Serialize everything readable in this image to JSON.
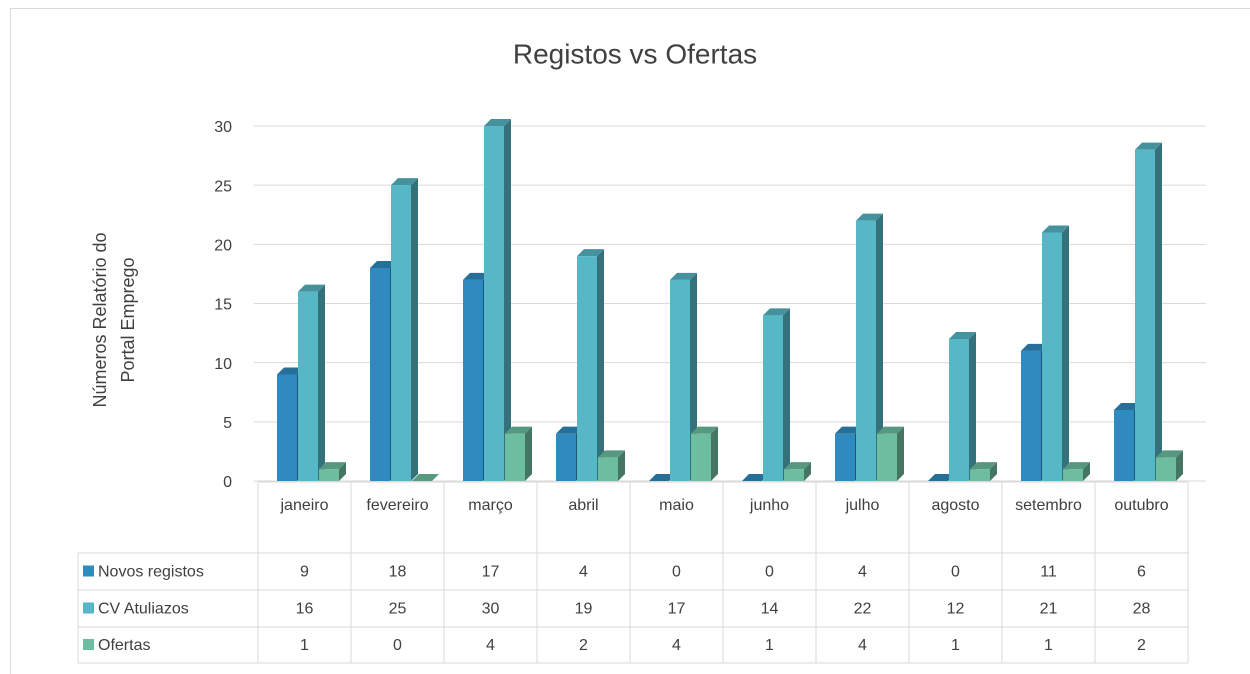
{
  "chart_data": {
    "type": "bar3d",
    "title": "Registos vs Ofertas",
    "y_label": "Números Relatório do Portal Emprego",
    "categories": [
      "janeiro",
      "fevereiro",
      "março",
      "abril",
      "maio",
      "junho",
      "julho",
      "agosto",
      "setembro",
      "outubro"
    ],
    "series": [
      {
        "name": "Novos registos",
        "color": "#2f8bbf",
        "values": [
          9,
          18,
          17,
          4,
          0,
          0,
          4,
          0,
          11,
          6
        ]
      },
      {
        "name": "CV Atuliazos",
        "color": "#56b7c6",
        "values": [
          16,
          25,
          30,
          19,
          17,
          14,
          22,
          12,
          21,
          28
        ]
      },
      {
        "name": "Ofertas",
        "color": "#6dbea0",
        "values": [
          1,
          0,
          4,
          2,
          4,
          1,
          4,
          1,
          1,
          2
        ]
      }
    ],
    "ylim": [
      0,
      30
    ],
    "yticks": [
      0,
      5,
      10,
      15,
      20,
      25,
      30
    ],
    "grid": true,
    "data_table": true
  }
}
